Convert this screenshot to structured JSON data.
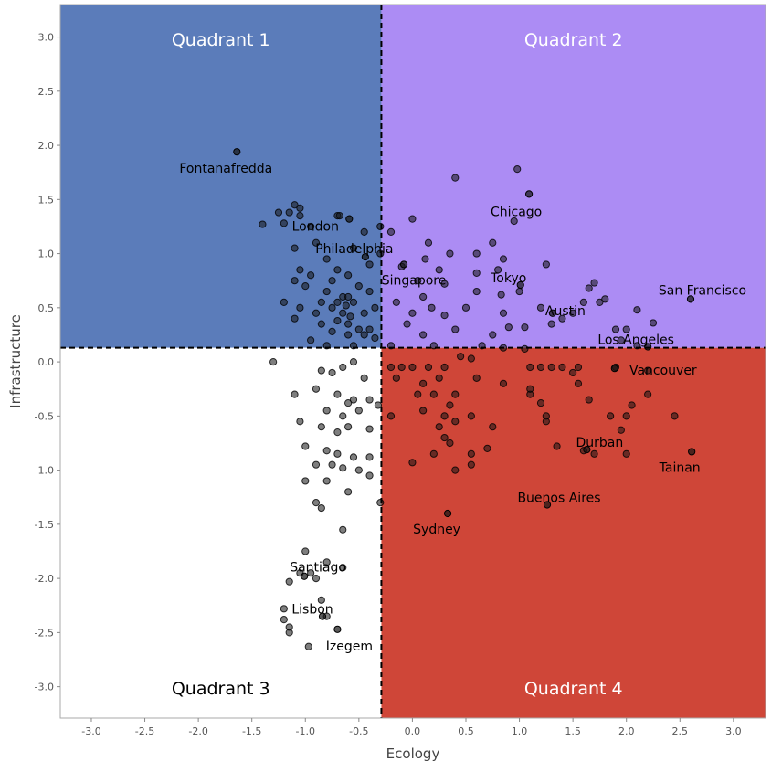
{
  "chart_data": {
    "type": "scatter",
    "xlabel": "Ecology",
    "ylabel": "Infrastructure",
    "xlim": [
      -3.29,
      3.3
    ],
    "ylim": [
      -3.29,
      3.3
    ],
    "xticks": [
      "-3.0",
      "-2.5",
      "-2.0",
      "-1.5",
      "-1.0",
      "-0.5",
      "0.0",
      "0.5",
      "1.0",
      "1.5",
      "2.0",
      "2.5",
      "3.0"
    ],
    "yticks": [
      "-3.0",
      "-2.5",
      "-2.0",
      "-1.5",
      "-1.0",
      "-0.5",
      "0.0",
      "0.5",
      "1.0",
      "1.5",
      "2.0",
      "2.5",
      "3.0"
    ],
    "grid": false,
    "divider": {
      "x": -0.29,
      "y": 0.13
    },
    "quadrants": [
      {
        "label": "Quadrant 1",
        "color": "#5b7cba",
        "text_color": "#ffffff"
      },
      {
        "label": "Quadrant 2",
        "color": "#ac8cf4",
        "text_color": "#ffffff"
      },
      {
        "label": "Quadrant 3",
        "color": "#ffffff",
        "text_color": "#000000"
      },
      {
        "label": "Quadrant 4",
        "color": "#cf4638",
        "text_color": "#ffffff"
      }
    ],
    "labeled_points": [
      {
        "name": "Fontanafredda",
        "x": -1.64,
        "y": 1.94
      },
      {
        "name": "London",
        "x": -0.59,
        "y": 1.32
      },
      {
        "name": "Philadelphia",
        "x": -0.44,
        "y": 0.97
      },
      {
        "name": "Singapore",
        "x": -0.08,
        "y": 0.9
      },
      {
        "name": "Chicago",
        "x": 1.09,
        "y": 1.55
      },
      {
        "name": "Tokyo",
        "x": 1.01,
        "y": 0.71
      },
      {
        "name": "Austin",
        "x": 1.31,
        "y": 0.45
      },
      {
        "name": "San Francisco",
        "x": 2.6,
        "y": 0.58
      },
      {
        "name": "Los Angeles",
        "x": 2.2,
        "y": 0.14
      },
      {
        "name": "Vancouver",
        "x": 1.89,
        "y": -0.06
      },
      {
        "name": "Durban",
        "x": 1.63,
        "y": -0.81
      },
      {
        "name": "Tainan",
        "x": 2.61,
        "y": -0.83
      },
      {
        "name": "Buenos Aires",
        "x": 1.26,
        "y": -1.32
      },
      {
        "name": "Sydney",
        "x": 0.33,
        "y": -1.4
      },
      {
        "name": "Santiago",
        "x": -1.01,
        "y": -1.98
      },
      {
        "name": "Lisbon",
        "x": -0.84,
        "y": -2.35
      },
      {
        "name": "Izegem",
        "x": -0.7,
        "y": -2.47
      }
    ],
    "points": [
      [
        -1.15,
        1.38
      ],
      [
        -1.25,
        1.38
      ],
      [
        -1.4,
        1.27
      ],
      [
        -1.1,
        1.45
      ],
      [
        -1.05,
        1.42
      ],
      [
        -1.05,
        1.35
      ],
      [
        -0.7,
        1.35
      ],
      [
        -0.68,
        1.35
      ],
      [
        -0.95,
        1.25
      ],
      [
        -1.2,
        1.28
      ],
      [
        -0.3,
        1.25
      ],
      [
        -0.45,
        1.2
      ],
      [
        -1.1,
        1.05
      ],
      [
        -0.9,
        1.1
      ],
      [
        -0.55,
        1.05
      ],
      [
        -0.3,
        1.0
      ],
      [
        -0.8,
        0.95
      ],
      [
        -0.4,
        0.9
      ],
      [
        -1.05,
        0.85
      ],
      [
        -0.7,
        0.85
      ],
      [
        -0.6,
        0.8
      ],
      [
        -0.95,
        0.8
      ],
      [
        -0.75,
        0.75
      ],
      [
        -1.1,
        0.75
      ],
      [
        -1.0,
        0.7
      ],
      [
        -0.5,
        0.7
      ],
      [
        -0.4,
        0.65
      ],
      [
        -0.8,
        0.65
      ],
      [
        -0.65,
        0.6
      ],
      [
        -0.6,
        0.6
      ],
      [
        -0.85,
        0.55
      ],
      [
        -1.2,
        0.55
      ],
      [
        -1.05,
        0.5
      ],
      [
        -0.75,
        0.5
      ],
      [
        -0.55,
        0.55
      ],
      [
        -0.35,
        0.5
      ],
      [
        -0.45,
        0.45
      ],
      [
        -0.9,
        0.45
      ],
      [
        -0.65,
        0.45
      ],
      [
        -0.7,
        0.38
      ],
      [
        -0.6,
        0.35
      ],
      [
        -1.1,
        0.4
      ],
      [
        -0.85,
        0.35
      ],
      [
        -0.5,
        0.3
      ],
      [
        -0.4,
        0.3
      ],
      [
        -0.75,
        0.28
      ],
      [
        -0.6,
        0.25
      ],
      [
        -0.45,
        0.25
      ],
      [
        -0.95,
        0.2
      ],
      [
        -0.35,
        0.22
      ],
      [
        -0.8,
        0.15
      ],
      [
        -0.55,
        0.15
      ],
      [
        -0.7,
        0.55
      ],
      [
        -0.62,
        0.52
      ],
      [
        -0.58,
        0.42
      ],
      [
        0.4,
        1.7
      ],
      [
        0.98,
        1.78
      ],
      [
        0.95,
        1.3
      ],
      [
        0.0,
        1.32
      ],
      [
        0.75,
        1.1
      ],
      [
        0.15,
        1.1
      ],
      [
        -0.2,
        1.2
      ],
      [
        0.35,
        1.0
      ],
      [
        0.6,
        1.0
      ],
      [
        0.85,
        0.95
      ],
      [
        1.25,
        0.9
      ],
      [
        0.12,
        0.95
      ],
      [
        -0.1,
        0.88
      ],
      [
        0.25,
        0.85
      ],
      [
        0.6,
        0.82
      ],
      [
        0.8,
        0.85
      ],
      [
        0.05,
        0.75
      ],
      [
        0.3,
        0.72
      ],
      [
        0.6,
        0.65
      ],
      [
        0.83,
        0.62
      ],
      [
        1.0,
        0.65
      ],
      [
        1.7,
        0.73
      ],
      [
        1.65,
        0.68
      ],
      [
        1.8,
        0.58
      ],
      [
        1.75,
        0.55
      ],
      [
        2.1,
        0.48
      ],
      [
        0.5,
        0.5
      ],
      [
        0.85,
        0.45
      ],
      [
        1.2,
        0.5
      ],
      [
        1.5,
        0.45
      ],
      [
        2.25,
        0.36
      ],
      [
        2.0,
        0.3
      ],
      [
        0.0,
        0.45
      ],
      [
        0.3,
        0.43
      ],
      [
        -0.05,
        0.35
      ],
      [
        0.1,
        0.25
      ],
      [
        0.75,
        0.25
      ],
      [
        0.9,
        0.32
      ],
      [
        1.05,
        0.32
      ],
      [
        1.3,
        0.35
      ],
      [
        1.4,
        0.4
      ],
      [
        1.6,
        0.55
      ],
      [
        1.95,
        0.2
      ],
      [
        0.2,
        0.15
      ],
      [
        0.85,
        0.13
      ],
      [
        0.65,
        0.15
      ],
      [
        1.05,
        0.12
      ],
      [
        -0.2,
        0.15
      ],
      [
        2.1,
        0.15
      ],
      [
        -0.15,
        0.55
      ],
      [
        0.1,
        0.6
      ],
      [
        0.18,
        0.5
      ],
      [
        0.4,
        0.3
      ],
      [
        1.9,
        0.3
      ],
      [
        -1.3,
        0.0
      ],
      [
        -0.85,
        -0.08
      ],
      [
        -0.55,
        0.0
      ],
      [
        -0.65,
        -0.05
      ],
      [
        -0.75,
        -0.1
      ],
      [
        -0.45,
        -0.15
      ],
      [
        -1.1,
        -0.3
      ],
      [
        -0.9,
        -0.25
      ],
      [
        -0.7,
        -0.3
      ],
      [
        -0.55,
        -0.35
      ],
      [
        -0.6,
        -0.38
      ],
      [
        -0.4,
        -0.35
      ],
      [
        -0.8,
        -0.45
      ],
      [
        -0.65,
        -0.5
      ],
      [
        -0.5,
        -0.45
      ],
      [
        -1.05,
        -0.55
      ],
      [
        -0.85,
        -0.6
      ],
      [
        -0.6,
        -0.6
      ],
      [
        -0.4,
        -0.62
      ],
      [
        -0.7,
        -0.65
      ],
      [
        -1.0,
        -0.78
      ],
      [
        -0.8,
        -0.82
      ],
      [
        -0.7,
        -0.85
      ],
      [
        -0.55,
        -0.88
      ],
      [
        -0.4,
        -0.88
      ],
      [
        -0.9,
        -0.95
      ],
      [
        -0.75,
        -0.95
      ],
      [
        -0.65,
        -0.98
      ],
      [
        -1.0,
        -1.1
      ],
      [
        -0.8,
        -1.1
      ],
      [
        -0.5,
        -1.0
      ],
      [
        -0.4,
        -1.05
      ],
      [
        -0.6,
        -1.2
      ],
      [
        -0.9,
        -1.3
      ],
      [
        -0.85,
        -1.35
      ],
      [
        -0.65,
        -1.55
      ],
      [
        -1.0,
        -1.75
      ],
      [
        -0.8,
        -1.85
      ],
      [
        -0.65,
        -1.9
      ],
      [
        -1.15,
        -2.03
      ],
      [
        -0.9,
        -2.0
      ],
      [
        -0.85,
        -2.2
      ],
      [
        -1.2,
        -2.28
      ],
      [
        -1.2,
        -2.38
      ],
      [
        -1.15,
        -2.45
      ],
      [
        -1.15,
        -2.5
      ],
      [
        -0.8,
        -2.35
      ],
      [
        -0.97,
        -2.63
      ],
      [
        -0.95,
        -1.95
      ],
      [
        -1.05,
        -1.95
      ],
      [
        -0.32,
        -0.4
      ],
      [
        -0.2,
        -0.05
      ],
      [
        -0.1,
        -0.05
      ],
      [
        0.0,
        -0.05
      ],
      [
        0.15,
        -0.05
      ],
      [
        0.3,
        -0.05
      ],
      [
        0.45,
        0.05
      ],
      [
        0.55,
        0.03
      ],
      [
        -0.15,
        -0.15
      ],
      [
        0.25,
        -0.15
      ],
      [
        0.4,
        -0.3
      ],
      [
        0.05,
        -0.3
      ],
      [
        0.2,
        -0.3
      ],
      [
        0.35,
        -0.4
      ],
      [
        -0.2,
        -0.5
      ],
      [
        0.1,
        -0.45
      ],
      [
        0.3,
        -0.5
      ],
      [
        0.4,
        -0.55
      ],
      [
        0.55,
        -0.5
      ],
      [
        0.75,
        -0.6
      ],
      [
        0.25,
        -0.6
      ],
      [
        0.3,
        -0.7
      ],
      [
        0.35,
        -0.75
      ],
      [
        0.7,
        -0.8
      ],
      [
        0.55,
        -0.85
      ],
      [
        0.0,
        -0.93
      ],
      [
        0.4,
        -1.0
      ],
      [
        0.55,
        -0.95
      ],
      [
        1.1,
        -0.3
      ],
      [
        1.2,
        -0.38
      ],
      [
        1.3,
        -0.05
      ],
      [
        1.4,
        -0.05
      ],
      [
        1.5,
        -0.1
      ],
      [
        1.55,
        -0.2
      ],
      [
        1.65,
        -0.35
      ],
      [
        1.85,
        -0.5
      ],
      [
        2.0,
        -0.5
      ],
      [
        2.05,
        -0.4
      ],
      [
        2.2,
        -0.3
      ],
      [
        2.45,
        -0.5
      ],
      [
        1.9,
        -0.05
      ],
      [
        2.2,
        -0.08
      ],
      [
        1.25,
        -0.5
      ],
      [
        1.25,
        -0.55
      ],
      [
        1.35,
        -0.78
      ],
      [
        1.95,
        -0.63
      ],
      [
        2.0,
        -0.85
      ],
      [
        1.7,
        -0.85
      ],
      [
        1.6,
        -0.82
      ],
      [
        1.1,
        -0.05
      ],
      [
        1.2,
        -0.05
      ],
      [
        0.85,
        -0.2
      ],
      [
        -0.3,
        -1.3
      ],
      [
        0.2,
        -0.85
      ],
      [
        0.1,
        -0.2
      ],
      [
        0.6,
        -0.15
      ],
      [
        1.55,
        -0.05
      ],
      [
        1.1,
        -0.25
      ]
    ]
  }
}
